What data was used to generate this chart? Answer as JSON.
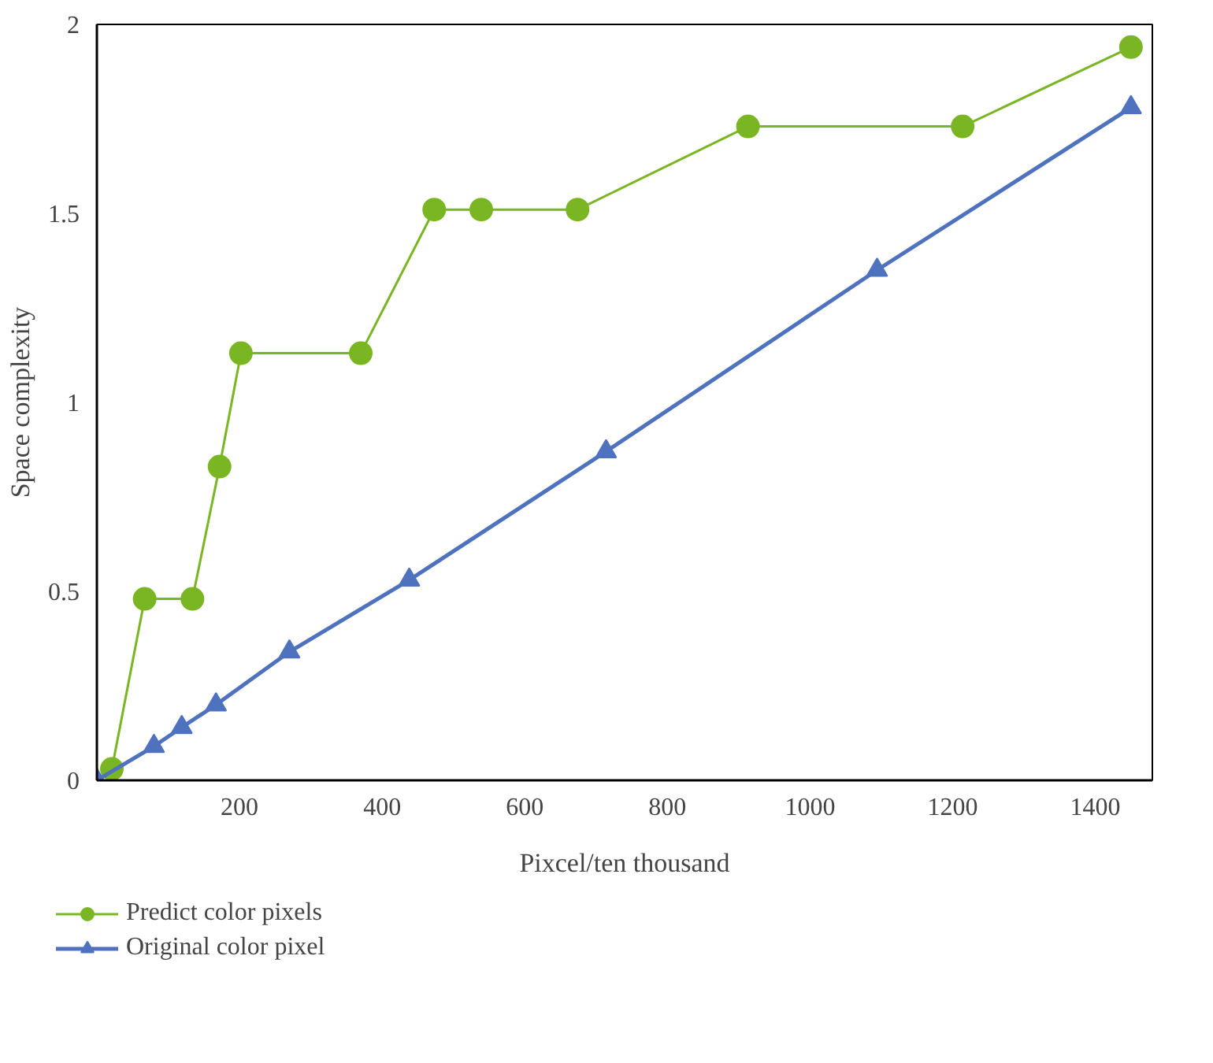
{
  "chart_data": {
    "type": "line",
    "xlabel": "Pixcel/ten thousand",
    "ylabel": "Space complexity",
    "xlim": [
      0,
      1480
    ],
    "ylim": [
      0,
      2
    ],
    "xticks": [
      200,
      400,
      600,
      800,
      1000,
      1200,
      1400
    ],
    "yticks": [
      0,
      0.5,
      1,
      1.5,
      2
    ],
    "grid": false,
    "legend": "bottom left",
    "series": [
      {
        "name": "Predict color pixels",
        "color": "#7ab623",
        "marker": "circle",
        "x": [
          21,
          67,
          134,
          172,
          202,
          370,
          473,
          539,
          674,
          913,
          1214,
          1450
        ],
        "values": [
          0.03,
          0.48,
          0.48,
          0.83,
          1.13,
          1.13,
          1.51,
          1.51,
          1.51,
          1.73,
          1.73,
          1.94
        ]
      },
      {
        "name": "Original color pixel",
        "color": "#4f72be",
        "marker": "triangle",
        "x": [
          0,
          80,
          119,
          167,
          270,
          438,
          714,
          1094,
          1450
        ],
        "values": [
          0,
          0.09,
          0.14,
          0.2,
          0.34,
          0.53,
          0.87,
          1.35,
          1.78
        ]
      }
    ]
  }
}
